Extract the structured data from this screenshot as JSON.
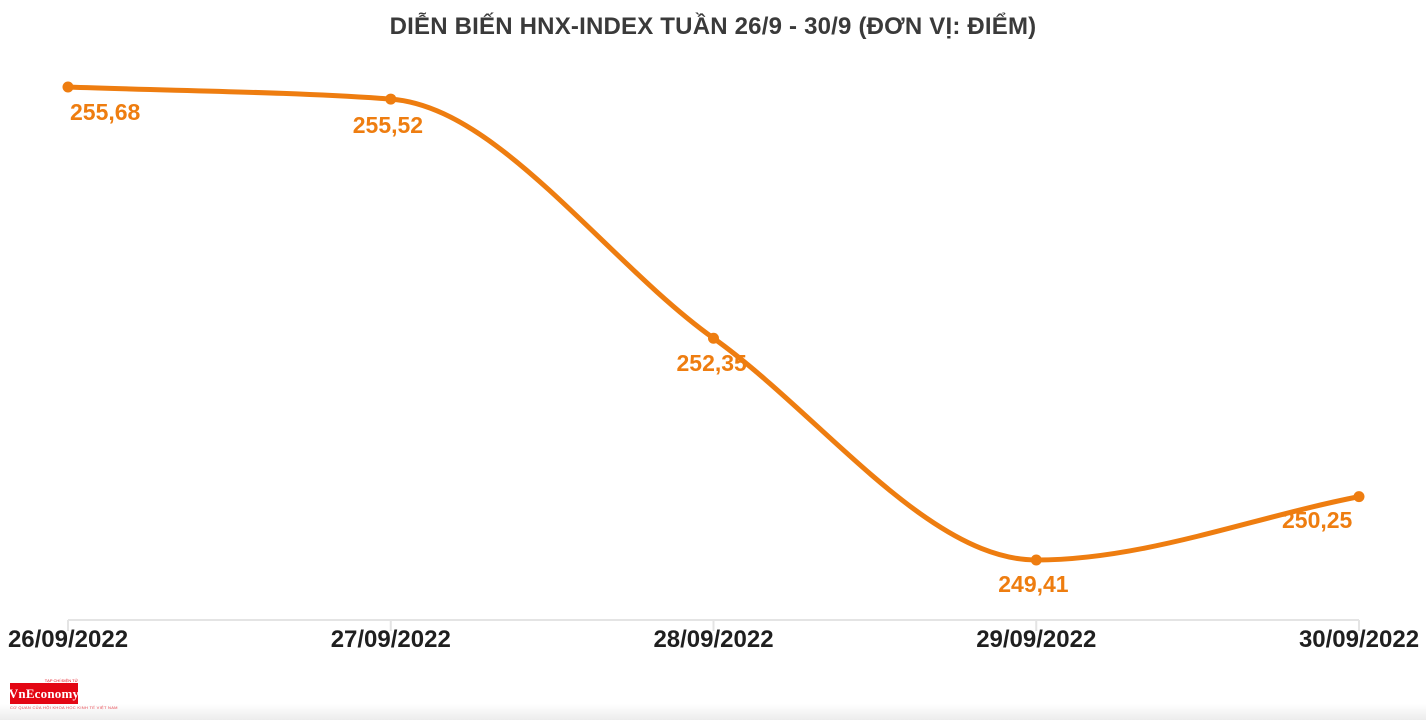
{
  "title": "DIỄN BIẾN HNX-INDEX TUẦN 26/9 - 30/9 (ĐƠN VỊ: ĐIỂM)",
  "colors": {
    "accent": "#ee7d10",
    "title": "#3a3a3a",
    "axis_label": "#1f1f1f",
    "axis_line": "#e4e4e4",
    "logo_red": "#e30613"
  },
  "chart_data": {
    "type": "line",
    "title": "DIỄN BIẾN HNX-INDEX TUẦN 26/9 - 30/9 (ĐƠN VỊ: ĐIỂM)",
    "categories": [
      "26/09/2022",
      "27/09/2022",
      "28/09/2022",
      "29/09/2022",
      "30/09/2022"
    ],
    "series": [
      {
        "name": "HNX-Index",
        "values": [
          255.68,
          255.52,
          252.35,
          249.41,
          250.25
        ],
        "color": "#ee7d10"
      }
    ],
    "point_labels": [
      "255,68",
      "255,52",
      "252,35",
      "249,41",
      "250,25"
    ],
    "xlabel": "",
    "ylabel": "",
    "unit": "ĐIỂM",
    "ylim": [
      248.8,
      256.2
    ],
    "grid": false,
    "legend": false,
    "marker": "circle",
    "smooth": true
  },
  "branding": {
    "logo_text": "VnEconomy",
    "tagline_top": "TẠP CHÍ ĐIỆN TỬ",
    "tagline_bottom": "CƠ QUAN CỦA HỘI KHOA HỌC KINH TẾ VIỆT NAM"
  }
}
